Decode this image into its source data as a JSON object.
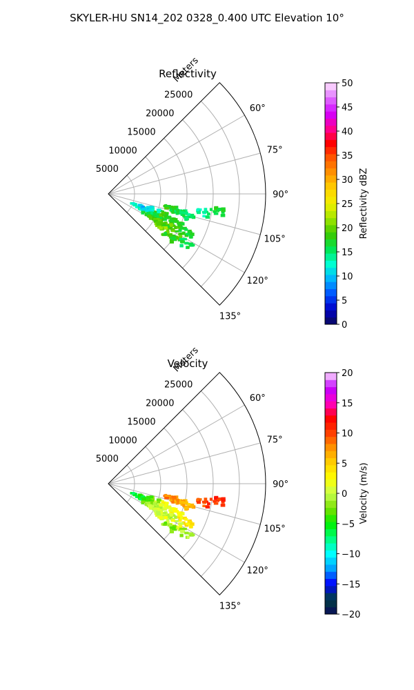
{
  "figure": {
    "suptitle": "SKYLER-HU  SN14_202  0328_0.400 UTC Elevation 10°"
  },
  "chart_data": [
    {
      "type": "heatmap",
      "subtype": "polar-sector-ppi",
      "title": "Reflectivity",
      "radial_label": "Meters",
      "theta_range_deg": [
        45,
        135
      ],
      "theta_ticks_deg": [
        60,
        75,
        90,
        105,
        120,
        135
      ],
      "theta_tick_labels": [
        "60°",
        "75°",
        "90°",
        "105°",
        "120°",
        "135°"
      ],
      "r_range": [
        0,
        30000
      ],
      "r_ticks": [
        5000,
        10000,
        15000,
        20000,
        25000
      ],
      "r_tick_labels": [
        "5000",
        "10000",
        "15000",
        "20000",
        "25000"
      ],
      "grid": true,
      "colorbar": {
        "label": "Reflectivity dBZ",
        "range": [
          0,
          50
        ],
        "ticks": [
          0,
          5,
          10,
          15,
          20,
          25,
          30,
          35,
          40,
          45,
          50
        ],
        "tick_labels": [
          "0",
          "5",
          "10",
          "15",
          "20",
          "25",
          "30",
          "35",
          "40",
          "45",
          "50"
        ],
        "stops": [
          "#0a0a5a",
          "#0000c8",
          "#0050ff",
          "#00b4ff",
          "#00ffd2",
          "#00e650",
          "#3cc800",
          "#a0e600",
          "#f0f000",
          "#ffd200",
          "#ff9600",
          "#ff5a00",
          "#ff0000",
          "#ff0096",
          "#d200ff",
          "#e070ff",
          "#ffe6ff"
        ]
      },
      "echoes": [
        {
          "theta": 103,
          "r": 12000,
          "value": 18
        },
        {
          "theta": 104,
          "r": 13500,
          "value": 16
        },
        {
          "theta": 106,
          "r": 15500,
          "value": 15
        },
        {
          "theta": 99,
          "r": 21000,
          "value": 17
        },
        {
          "theta": 101,
          "r": 18500,
          "value": 14
        },
        {
          "theta": 110,
          "r": 11000,
          "value": 18
        },
        {
          "theta": 112,
          "r": 12500,
          "value": 17
        },
        {
          "theta": 113,
          "r": 10000,
          "value": 19
        },
        {
          "theta": 114,
          "r": 14500,
          "value": 18
        },
        {
          "theta": 116,
          "r": 16500,
          "value": 17
        },
        {
          "theta": 118,
          "r": 13000,
          "value": 20
        },
        {
          "theta": 120,
          "r": 11500,
          "value": 18
        },
        {
          "theta": 121,
          "r": 15000,
          "value": 19
        },
        {
          "theta": 123,
          "r": 17500,
          "value": 16
        },
        {
          "theta": 117,
          "r": 8500,
          "value": 17
        },
        {
          "theta": 113,
          "r": 6000,
          "value": 13
        },
        {
          "theta": 111,
          "r": 7500,
          "value": 10
        },
        {
          "theta": 109,
          "r": 9000,
          "value": 12
        },
        {
          "theta": 115,
          "r": 9500,
          "value": 16
        },
        {
          "theta": 119,
          "r": 10000,
          "value": 19
        },
        {
          "theta": 122,
          "r": 12000,
          "value": 21
        },
        {
          "theta": 125,
          "r": 14000,
          "value": 18
        }
      ]
    },
    {
      "type": "heatmap",
      "subtype": "polar-sector-ppi",
      "title": "Velocity",
      "radial_label": "Meters",
      "theta_range_deg": [
        45,
        135
      ],
      "theta_ticks_deg": [
        60,
        75,
        90,
        105,
        120,
        135
      ],
      "theta_tick_labels": [
        "60°",
        "75°",
        "90°",
        "105°",
        "120°",
        "135°"
      ],
      "r_range": [
        0,
        30000
      ],
      "r_ticks": [
        5000,
        10000,
        15000,
        20000,
        25000
      ],
      "r_tick_labels": [
        "5000",
        "10000",
        "15000",
        "20000",
        "25000"
      ],
      "grid": true,
      "colorbar": {
        "label": "Velocity (m/s)",
        "range": [
          -20,
          20
        ],
        "ticks": [
          -20,
          -15,
          -10,
          -5,
          0,
          5,
          10,
          15,
          20
        ],
        "tick_labels": [
          "−20",
          "−15",
          "−10",
          "−5",
          "0",
          "5",
          "10",
          "15",
          "20"
        ],
        "stops": [
          "#0a0a5a",
          "#004040",
          "#0000ff",
          "#00a0ff",
          "#00ffff",
          "#00ff80",
          "#00f000",
          "#78e000",
          "#c8ff50",
          "#ffff00",
          "#ffd200",
          "#ff9600",
          "#ff4000",
          "#ff0000",
          "#ff00c8",
          "#c000ff",
          "#ffe0ff"
        ]
      },
      "echoes": [
        {
          "theta": 103,
          "r": 12000,
          "value": 8
        },
        {
          "theta": 104,
          "r": 13500,
          "value": 7
        },
        {
          "theta": 106,
          "r": 15500,
          "value": 6
        },
        {
          "theta": 99,
          "r": 21000,
          "value": 11
        },
        {
          "theta": 101,
          "r": 18500,
          "value": 10
        },
        {
          "theta": 110,
          "r": 11000,
          "value": 2
        },
        {
          "theta": 112,
          "r": 12500,
          "value": 1
        },
        {
          "theta": 113,
          "r": 10000,
          "value": 1
        },
        {
          "theta": 114,
          "r": 14500,
          "value": 3
        },
        {
          "theta": 116,
          "r": 16500,
          "value": 4
        },
        {
          "theta": 118,
          "r": 13000,
          "value": 0
        },
        {
          "theta": 120,
          "r": 11500,
          "value": 0
        },
        {
          "theta": 121,
          "r": 15000,
          "value": 1
        },
        {
          "theta": 123,
          "r": 17500,
          "value": -1
        },
        {
          "theta": 117,
          "r": 8500,
          "value": -2
        },
        {
          "theta": 113,
          "r": 6000,
          "value": -6
        },
        {
          "theta": 111,
          "r": 7500,
          "value": -5
        },
        {
          "theta": 109,
          "r": 9000,
          "value": -3
        },
        {
          "theta": 115,
          "r": 9500,
          "value": -1
        },
        {
          "theta": 119,
          "r": 10000,
          "value": 0
        },
        {
          "theta": 122,
          "r": 12000,
          "value": 1
        },
        {
          "theta": 125,
          "r": 14000,
          "value": -2
        }
      ]
    }
  ]
}
